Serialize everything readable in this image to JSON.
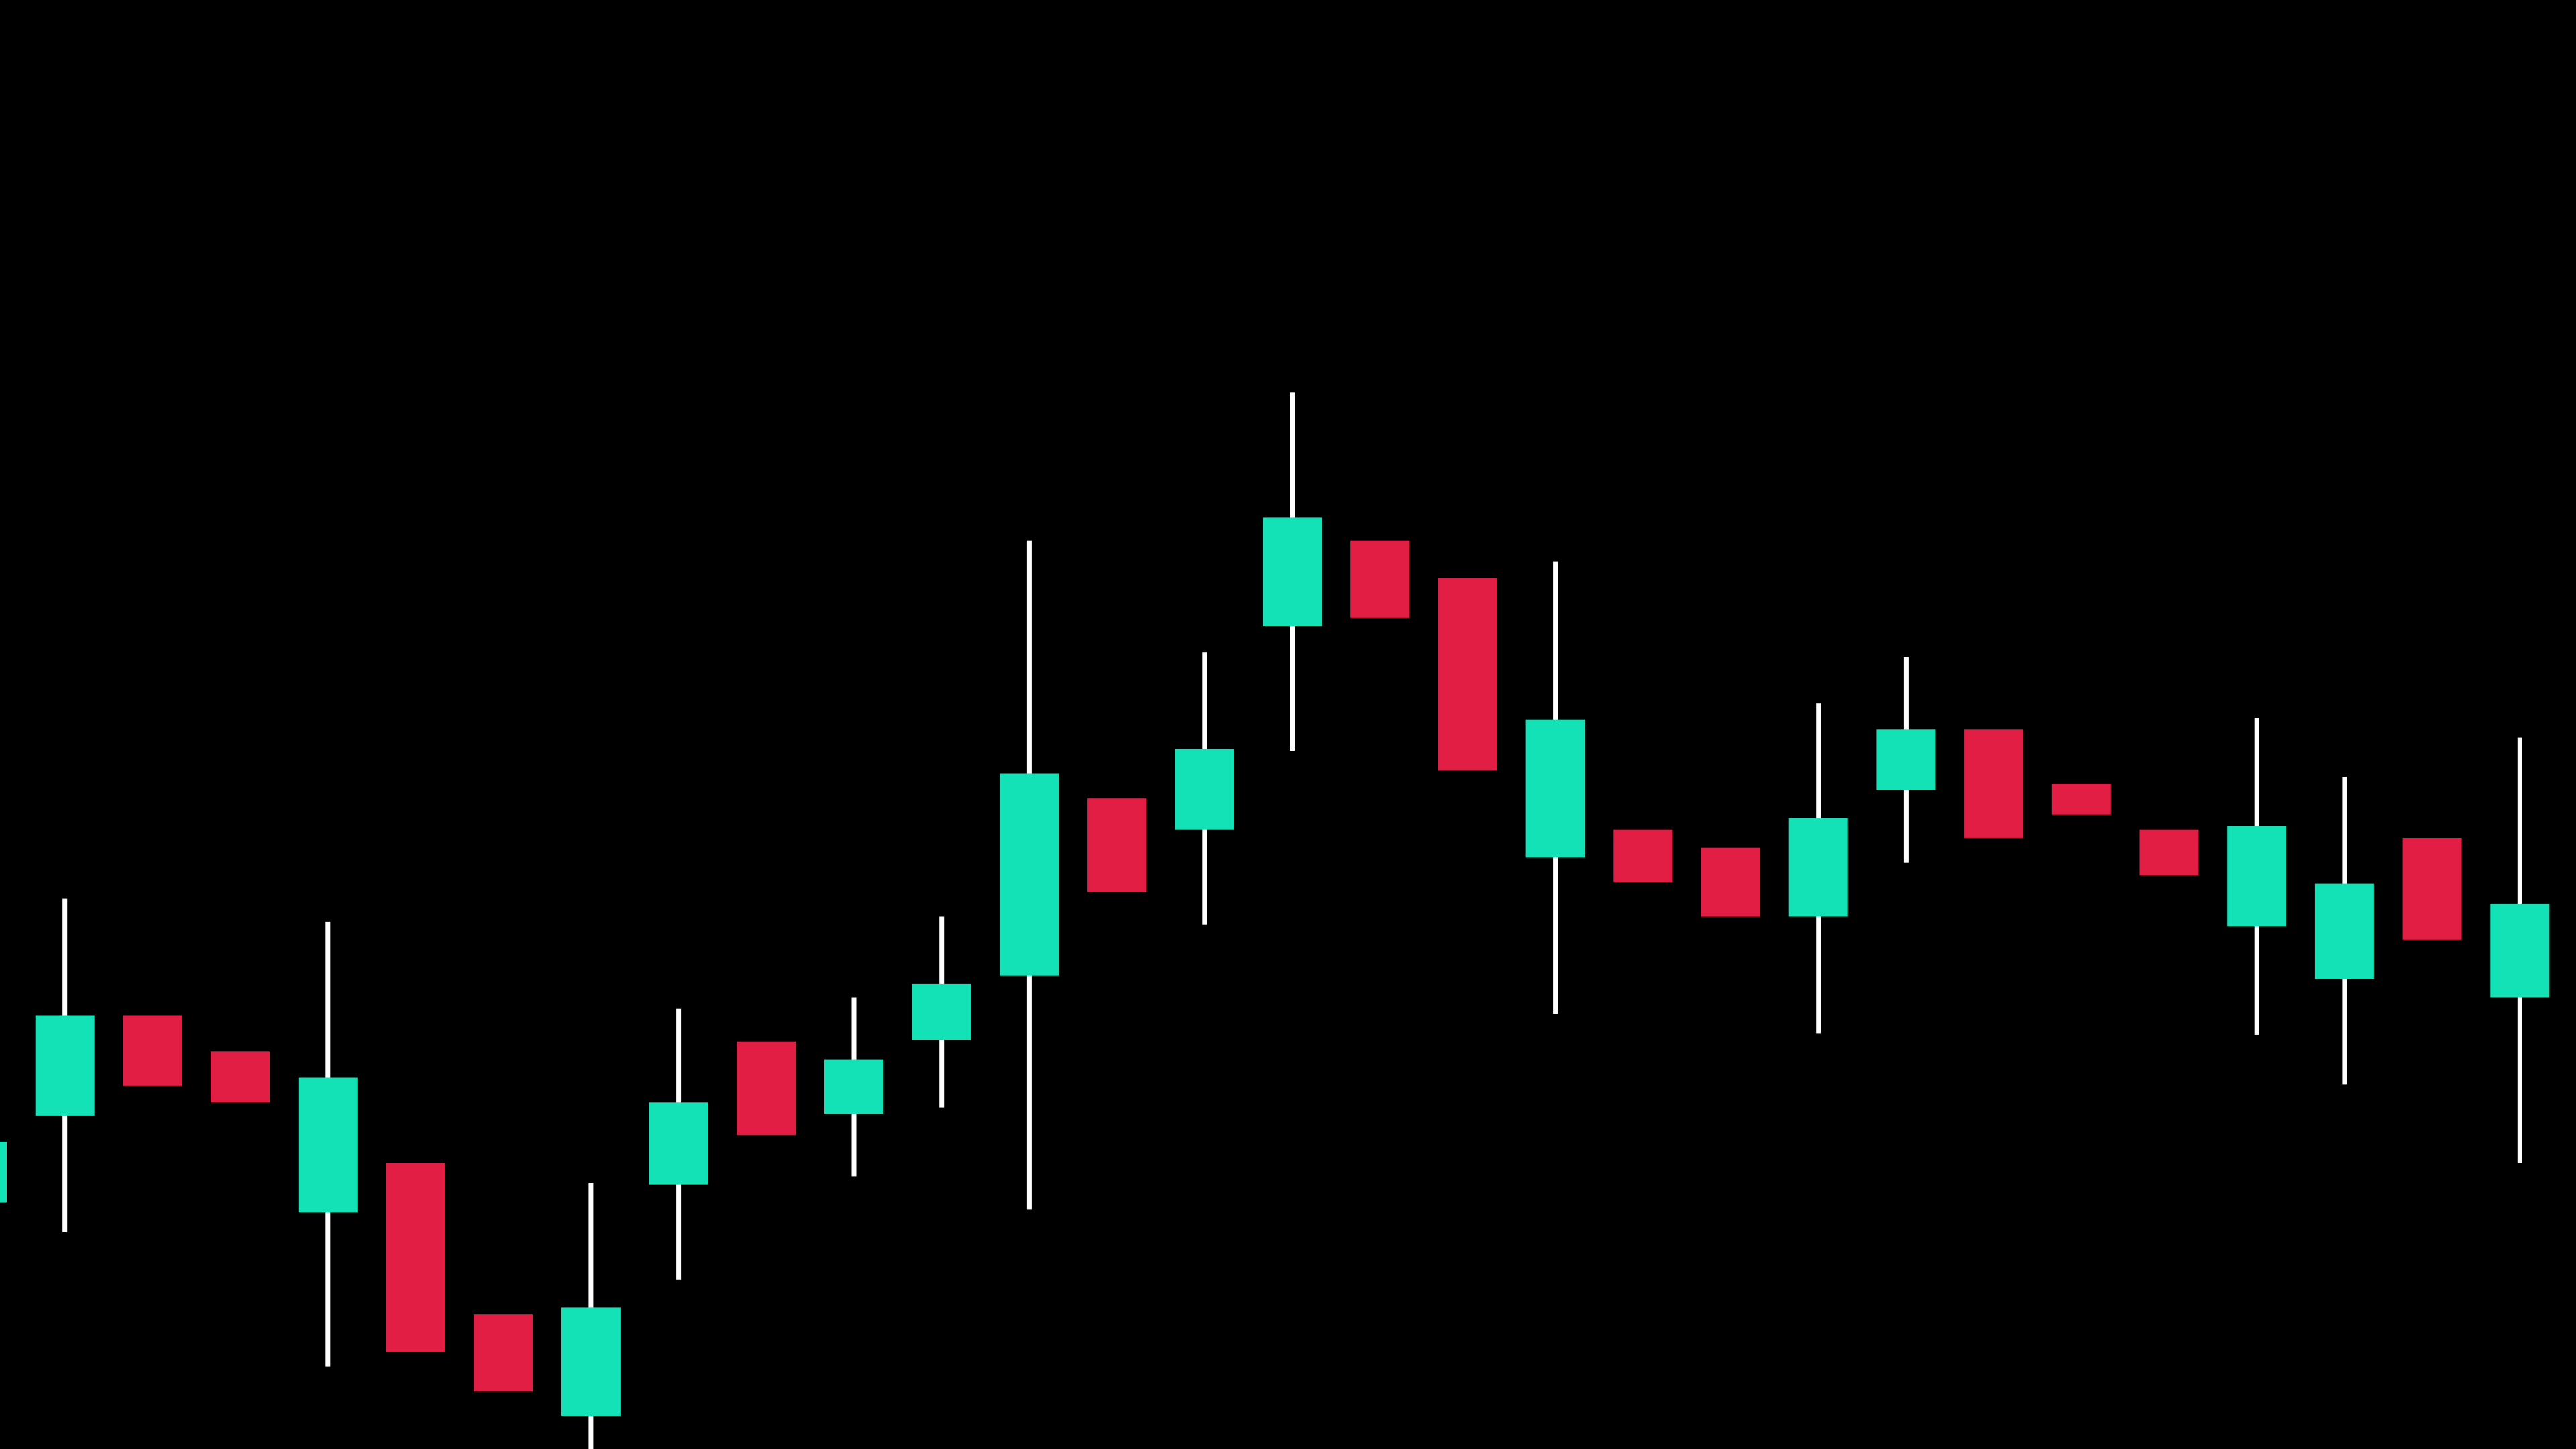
{
  "colors": {
    "background": "#000000",
    "up": "#12e2b6",
    "down": "#e31e45",
    "wick": "#ffffff"
  },
  "chart_data": {
    "type": "candlestick",
    "axes_shown": false,
    "grid": false,
    "legend": "none",
    "ylim": [
      0,
      882
    ],
    "candles": [
      {
        "open": 150,
        "close": 187,
        "high": 187,
        "low": 150
      },
      {
        "open": 203,
        "close": 264,
        "high": 335,
        "low": 132
      },
      {
        "open": 264,
        "close": 221,
        "high": 264,
        "low": 221
      },
      {
        "open": 242,
        "close": 211,
        "high": 242,
        "low": 211
      },
      {
        "open": 144,
        "close": 226,
        "high": 321,
        "low": 50
      },
      {
        "open": 174,
        "close": 59,
        "high": 174,
        "low": 59
      },
      {
        "open": 82,
        "close": 35,
        "high": 82,
        "low": 35
      },
      {
        "open": 20,
        "close": 86,
        "high": 162,
        "low": 0
      },
      {
        "open": 161,
        "close": 211,
        "high": 268,
        "low": 103
      },
      {
        "open": 248,
        "close": 191,
        "high": 248,
        "low": 191
      },
      {
        "open": 204,
        "close": 237,
        "high": 275,
        "low": 166
      },
      {
        "open": 249,
        "close": 283,
        "high": 324,
        "low": 208
      },
      {
        "open": 288,
        "close": 411,
        "high": 553,
        "low": 146
      },
      {
        "open": 396,
        "close": 339,
        "high": 396,
        "low": 339
      },
      {
        "open": 377,
        "close": 426,
        "high": 485,
        "low": 319
      },
      {
        "open": 501,
        "close": 567,
        "high": 643,
        "low": 425
      },
      {
        "open": 553,
        "close": 506,
        "high": 553,
        "low": 506
      },
      {
        "open": 530,
        "close": 413,
        "high": 530,
        "low": 413
      },
      {
        "open": 360,
        "close": 444,
        "high": 540,
        "low": 265
      },
      {
        "open": 377,
        "close": 345,
        "high": 377,
        "low": 345
      },
      {
        "open": 366,
        "close": 324,
        "high": 366,
        "low": 324
      },
      {
        "open": 324,
        "close": 384,
        "high": 454,
        "low": 253
      },
      {
        "open": 401,
        "close": 438,
        "high": 482,
        "low": 357
      },
      {
        "open": 438,
        "close": 372,
        "high": 438,
        "low": 372
      },
      {
        "open": 405,
        "close": 386,
        "high": 405,
        "low": 386
      },
      {
        "open": 377,
        "close": 349,
        "high": 377,
        "low": 349
      },
      {
        "open": 318,
        "close": 379,
        "high": 445,
        "low": 252
      },
      {
        "open": 286,
        "close": 344,
        "high": 409,
        "low": 222
      },
      {
        "open": 372,
        "close": 310,
        "high": 372,
        "low": 310
      },
      {
        "open": 275,
        "close": 332,
        "high": 433,
        "low": 174
      }
    ]
  }
}
